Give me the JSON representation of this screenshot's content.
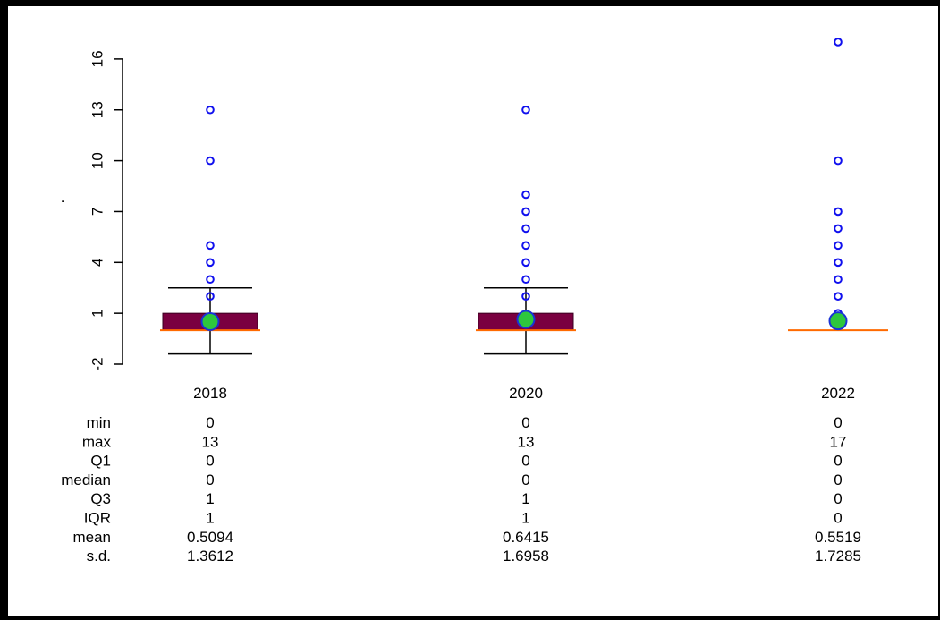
{
  "chart_data": {
    "type": "boxplot",
    "ylabel": ".",
    "ylim": [
      -2,
      17
    ],
    "yticks": [
      -2,
      1,
      4,
      7,
      10,
      13,
      16
    ],
    "grid": false,
    "colors": {
      "box": "#7a0040",
      "median": "#ff6a00",
      "mean_fill": "#2ec73d",
      "mean_stroke": "#1a33d6",
      "outlier": "#1010ee",
      "whisker": "#000000"
    },
    "groups": [
      {
        "label": "2018",
        "min": 0,
        "max": 13,
        "q1": 0,
        "median": 0,
        "q3": 1,
        "iqr": 1,
        "mean": 0.5094,
        "sd": 1.3612,
        "whisker_low": -1.4,
        "whisker_high": 2.5,
        "outliers": [
          2,
          3,
          4,
          5,
          10,
          13
        ]
      },
      {
        "label": "2020",
        "min": 0,
        "max": 13,
        "q1": 0,
        "median": 0,
        "q3": 1,
        "iqr": 1,
        "mean": 0.6415,
        "sd": 1.6958,
        "whisker_low": -1.4,
        "whisker_high": 2.5,
        "outliers": [
          2,
          3,
          4,
          5,
          6,
          7,
          8,
          13
        ]
      },
      {
        "label": "2022",
        "min": 0,
        "max": 17,
        "q1": 0,
        "median": 0,
        "q3": 0,
        "iqr": 0,
        "mean": 0.5519,
        "sd": 1.7285,
        "whisker_low": null,
        "whisker_high": null,
        "outliers": [
          1,
          2,
          3,
          4,
          5,
          6,
          7,
          10,
          17
        ]
      }
    ],
    "stats_table": {
      "row_labels": [
        "min",
        "max",
        "Q1",
        "median",
        "Q3",
        "IQR",
        "mean",
        "s.d."
      ],
      "keys": [
        "min",
        "max",
        "q1",
        "median",
        "q3",
        "iqr",
        "mean",
        "sd"
      ],
      "values": [
        [
          "0",
          "13",
          "0",
          "0",
          "1",
          "1",
          "0.5094",
          "1.3612"
        ],
        [
          "0",
          "13",
          "0",
          "0",
          "1",
          "1",
          "0.6415",
          "1.6958"
        ],
        [
          "0",
          "17",
          "0",
          "0",
          "0",
          "0",
          "0.5519",
          "1.7285"
        ]
      ]
    }
  }
}
